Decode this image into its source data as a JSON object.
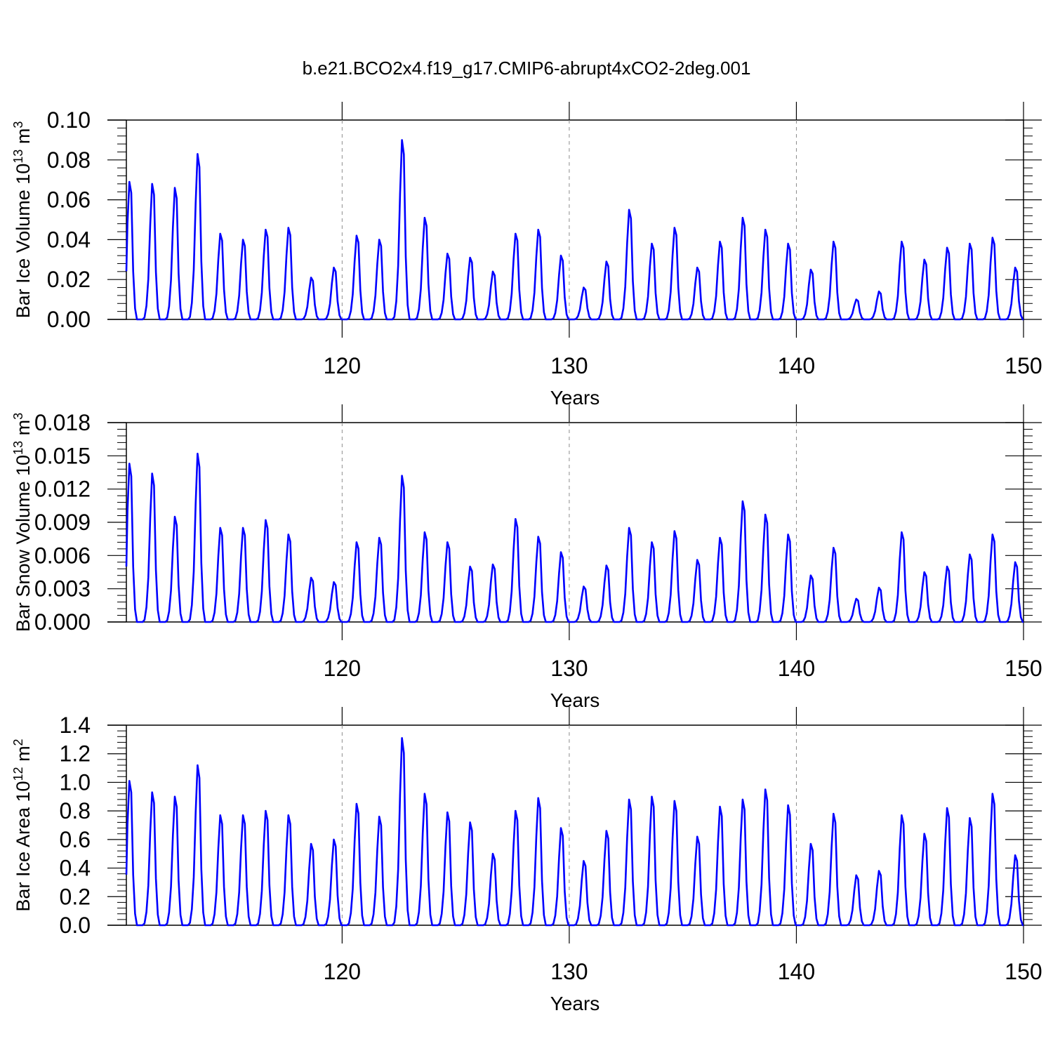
{
  "title": "b.e21.BCO2x4.f19_g17.CMIP6-abrupt4xCO2-2deg.001",
  "colors": {
    "line": "#0000ff",
    "axis": "#000000",
    "grid": "#8c8c8c"
  },
  "chart_data": [
    {
      "type": "line",
      "name": "ice-volume",
      "ylabel": {
        "main": "Bar Ice Volume 10",
        "sup": "13",
        "mid": " m",
        "sup2": "3"
      },
      "xlabel": "Years",
      "xlim": [
        110.5,
        150
      ],
      "ylim": [
        0,
        0.1
      ],
      "yticks": [
        "0.00",
        "0.02",
        "0.04",
        "0.06",
        "0.08",
        "0.10"
      ],
      "yticks_values": [
        0,
        0.02,
        0.04,
        0.06,
        0.08,
        0.1
      ],
      "xticks": [
        "120",
        "130",
        "140",
        "150"
      ],
      "xticks_values": [
        120,
        130,
        140,
        150
      ],
      "grid_x": [
        120,
        130,
        140
      ],
      "series": [
        {
          "name": "Bar Ice Volume",
          "start_year": 110.5,
          "peak_offset": 0.25,
          "peaks": [
            0.069,
            0.068,
            0.066,
            0.083,
            0.043,
            0.04,
            0.045,
            0.046,
            0.021,
            0.026,
            0.042,
            0.04,
            0.09,
            0.051,
            0.033,
            0.031,
            0.024,
            0.043,
            0.045,
            0.032,
            0.016,
            0.029,
            0.055,
            0.038,
            0.046,
            0.026,
            0.039,
            0.051,
            0.045,
            0.038,
            0.025,
            0.039,
            0.01,
            0.014,
            0.039,
            0.03,
            0.036,
            0.038,
            0.041,
            0.026
          ]
        }
      ]
    },
    {
      "type": "line",
      "name": "snow-volume",
      "ylabel": {
        "main": "Bar Snow Volume 10",
        "sup": "13",
        "mid": " m",
        "sup2": "3"
      },
      "xlabel": "Years",
      "xlim": [
        110.5,
        150
      ],
      "ylim": [
        0,
        0.018
      ],
      "yticks": [
        "0.000",
        "0.003",
        "0.006",
        "0.009",
        "0.012",
        "0.015",
        "0.018"
      ],
      "yticks_values": [
        0,
        0.003,
        0.006,
        0.009,
        0.012,
        0.015,
        0.018
      ],
      "xticks": [
        "120",
        "130",
        "140",
        "150"
      ],
      "xticks_values": [
        120,
        130,
        140,
        150
      ],
      "grid_x": [
        120,
        130,
        140
      ],
      "series": [
        {
          "name": "Bar Snow Volume",
          "start_year": 110.5,
          "peak_offset": 0.25,
          "peaks": [
            0.0143,
            0.0134,
            0.0095,
            0.0152,
            0.0085,
            0.0085,
            0.0092,
            0.0079,
            0.004,
            0.0036,
            0.0072,
            0.0076,
            0.0132,
            0.0081,
            0.0072,
            0.005,
            0.0052,
            0.0093,
            0.0077,
            0.0063,
            0.0032,
            0.0051,
            0.0085,
            0.0072,
            0.0082,
            0.0056,
            0.0076,
            0.0109,
            0.0097,
            0.0079,
            0.0042,
            0.0067,
            0.0021,
            0.0031,
            0.0081,
            0.0045,
            0.005,
            0.0061,
            0.0079,
            0.0054
          ]
        }
      ]
    },
    {
      "type": "line",
      "name": "ice-area",
      "ylabel": {
        "main": "Bar Ice Area 10",
        "sup": "12",
        "mid": " m",
        "sup2": "2"
      },
      "xlabel": "Years",
      "xlim": [
        110.5,
        150
      ],
      "ylim": [
        0,
        1.4
      ],
      "yticks": [
        "0.0",
        "0.2",
        "0.4",
        "0.6",
        "0.8",
        "1.0",
        "1.2",
        "1.4"
      ],
      "yticks_values": [
        0,
        0.2,
        0.4,
        0.6,
        0.8,
        1.0,
        1.2,
        1.4
      ],
      "xticks": [
        "120",
        "130",
        "140",
        "150"
      ],
      "xticks_values": [
        120,
        130,
        140,
        150
      ],
      "grid_x": [
        120,
        130,
        140
      ],
      "series": [
        {
          "name": "Bar Ice Area",
          "start_year": 110.5,
          "peak_offset": 0.25,
          "peaks": [
            1.01,
            0.93,
            0.9,
            1.12,
            0.77,
            0.77,
            0.8,
            0.77,
            0.57,
            0.6,
            0.85,
            0.76,
            1.31,
            0.92,
            0.79,
            0.72,
            0.5,
            0.8,
            0.89,
            0.68,
            0.45,
            0.66,
            0.88,
            0.9,
            0.87,
            0.62,
            0.83,
            0.88,
            0.95,
            0.84,
            0.57,
            0.78,
            0.35,
            0.38,
            0.77,
            0.64,
            0.82,
            0.75,
            0.92,
            0.49
          ]
        }
      ]
    }
  ]
}
